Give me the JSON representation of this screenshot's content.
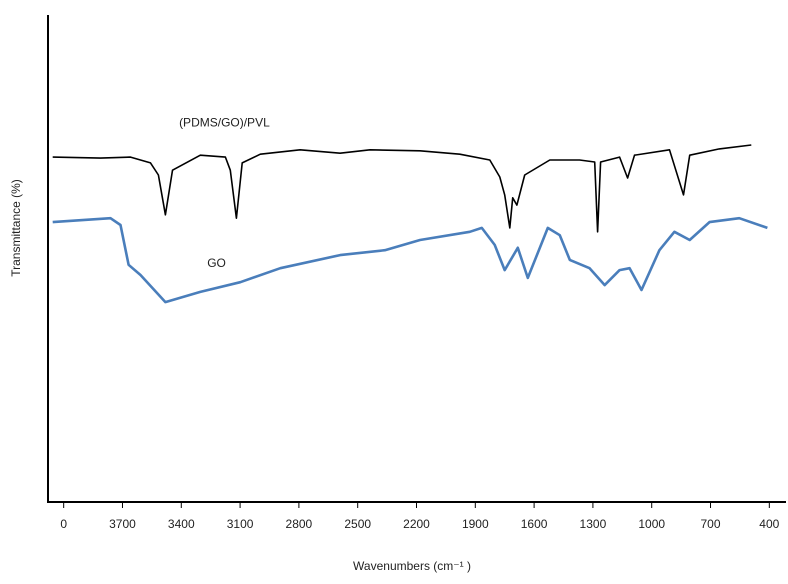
{
  "chart_data": {
    "type": "line",
    "xlabel": "Wavenumbers (cm⁻¹ )",
    "ylabel": "Transmittance (%)",
    "annotations": [
      {
        "text": "(PDMS/GO)/PVL",
        "x": 3180,
        "y": 77
      },
      {
        "text": "GO",
        "x": 3220,
        "y": 48
      }
    ],
    "xlim": [
      4080,
      320
    ],
    "ylim": [
      0,
      100
    ],
    "xticks": [
      {
        "value": 4000,
        "label": "0"
      },
      3700,
      3400,
      3100,
      2800,
      2500,
      2200,
      1900,
      1600,
      1300,
      1000,
      700,
      400
    ],
    "series": [
      {
        "name": "(PDMS/GO)/PVL",
        "color": "#000000",
        "x": [
          4056,
          3812,
          3659,
          3557,
          3517,
          3481,
          3445,
          3303,
          3175,
          3150,
          3119,
          3089,
          2997,
          2794,
          2590,
          2437,
          2182,
          1979,
          1826,
          1775,
          1750,
          1724,
          1709,
          1688,
          1648,
          1520,
          1368,
          1291,
          1276,
          1261,
          1164,
          1123,
          1088,
          909,
          838,
          806,
          655,
          492
        ],
        "values": [
          70.7,
          70.5,
          70.7,
          69.5,
          67.0,
          58.8,
          68.0,
          71.1,
          70.7,
          68.0,
          58.1,
          69.5,
          71.3,
          72.2,
          71.5,
          72.2,
          72.0,
          71.3,
          70.1,
          66.6,
          62.9,
          56.1,
          62.3,
          60.8,
          67.0,
          70.1,
          70.1,
          69.7,
          55.3,
          69.7,
          70.7,
          66.4,
          71.1,
          72.2,
          62.9,
          71.1,
          72.4,
          73.2
        ]
      },
      {
        "name": "GO",
        "color": "#4a7ebb",
        "x": [
          4056,
          3761,
          3710,
          3669,
          3608,
          3481,
          3303,
          3099,
          2895,
          2590,
          2361,
          2182,
          1928,
          1867,
          1801,
          1750,
          1683,
          1632,
          1530,
          1469,
          1418,
          1317,
          1240,
          1164,
          1113,
          1052,
          961,
          884,
          806,
          705,
          553,
          410
        ],
        "values": [
          57.3,
          58.1,
          56.7,
          48.5,
          46.4,
          40.8,
          42.9,
          44.9,
          47.8,
          50.5,
          51.5,
          53.6,
          55.3,
          56.1,
          52.6,
          47.4,
          52.0,
          45.8,
          56.1,
          54.6,
          49.5,
          47.8,
          44.3,
          47.4,
          47.8,
          43.3,
          51.5,
          55.3,
          53.6,
          57.3,
          58.1,
          56.1
        ]
      }
    ]
  }
}
